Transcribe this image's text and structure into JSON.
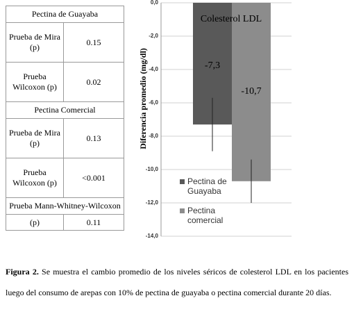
{
  "table": {
    "sections": [
      {
        "title": "Pectina de Guayaba",
        "rows": [
          [
            "Prueba de Mira (p)",
            "0.15"
          ],
          [
            "Prueba Wilcoxon (p)",
            "0.02"
          ]
        ]
      },
      {
        "title": "Pectina Comercial",
        "rows": [
          [
            "Prueba de Mira (p)",
            "0.13"
          ],
          [
            "Prueba Wilcoxon (p)",
            "<0.001"
          ]
        ]
      },
      {
        "title": "Prueba Mann-Whitney-Wilcoxon",
        "rows": [
          [
            "(p)",
            "0.11"
          ]
        ]
      }
    ]
  },
  "chart_data": {
    "type": "bar",
    "title": "Colesterol LDL",
    "y_label": "Diferencia promedio (mg/dl)",
    "series": [
      {
        "name": "Pectina de Guayaba",
        "color": "#595959",
        "values": [
          -7.3
        ],
        "value_labels": [
          "-7,3"
        ],
        "errors": [
          1.6
        ]
      },
      {
        "name": "Pectina comercial",
        "color": "#8c8c8c",
        "values": [
          -10.7
        ],
        "value_labels": [
          "-10,7"
        ],
        "errors": [
          1.3
        ]
      }
    ],
    "ylim": [
      -14,
      0
    ],
    "yticks": [
      {
        "value": 0,
        "label": "0,0"
      },
      {
        "value": -2,
        "label": "-2,0"
      },
      {
        "value": -4,
        "label": "-4,0"
      },
      {
        "value": -6,
        "label": "-6,0"
      },
      {
        "value": -8,
        "label": "-8,0"
      },
      {
        "value": -10,
        "label": "-10,0"
      },
      {
        "value": -12,
        "label": "-12,0"
      },
      {
        "value": -14,
        "label": "-14,0"
      }
    ],
    "grid": true,
    "legend": "bottom-left"
  },
  "caption": {
    "label": "Figura 2.",
    "text": "Se muestra el cambio promedio de los niveles séricos de colesterol LDL en los pacientes luego del consumo de arepas con 10% de pectina de guayaba o pectina comercial durante 20 días."
  }
}
